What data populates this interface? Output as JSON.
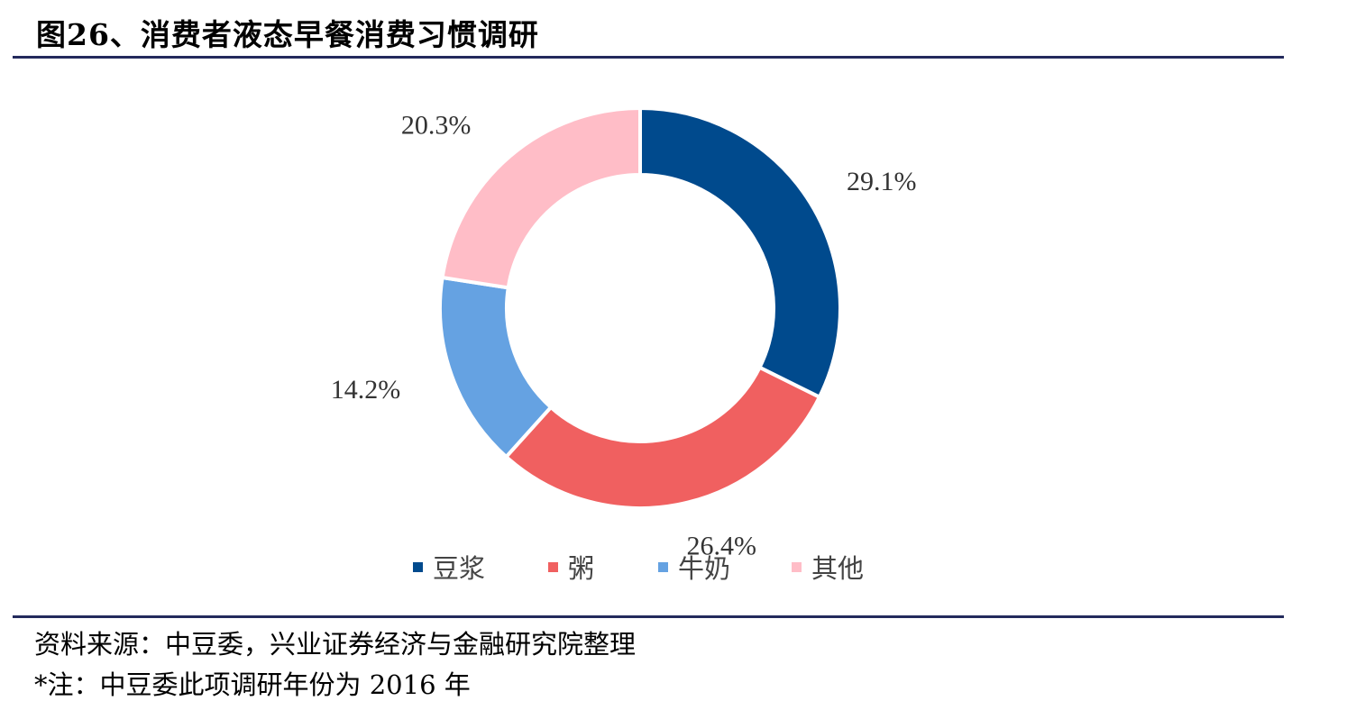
{
  "title": "图26、消费者液态早餐消费习惯调研",
  "chart_data": {
    "type": "pie",
    "donut": true,
    "legend_position": "bottom",
    "slices": [
      {
        "label": "豆浆",
        "value": 29.1,
        "display": "29.1%",
        "color": "#004a8d"
      },
      {
        "label": "粥",
        "value": 26.4,
        "display": "26.4%",
        "color": "#f06060"
      },
      {
        "label": "牛奶",
        "value": 14.2,
        "display": "14.2%",
        "color": "#65a2e2"
      },
      {
        "label": "其他",
        "value": 20.3,
        "display": "20.3%",
        "color": "#ffbdc7"
      }
    ]
  },
  "source": "资料来源：中豆委，兴业证券经济与金融研究院整理",
  "note": "*注：中豆委此项调研年份为 2016 年"
}
